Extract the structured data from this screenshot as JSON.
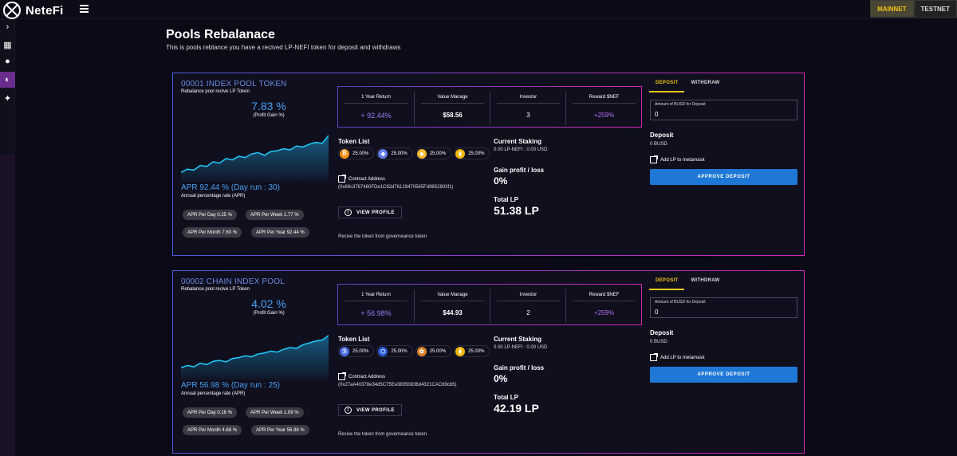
{
  "app": {
    "name": "NeteFi"
  },
  "network": {
    "mainnet": "MAINNET",
    "testnet": "TESTNET"
  },
  "page": {
    "title": "Pools Rebalanace",
    "subtitle": "This is pools reblance you have a recived LP-NEFI token for deposit and withdraws"
  },
  "sidebar_icons": [
    "chevron-right-icon",
    "grid-icon",
    "circle-icon",
    "pool-icon",
    "rocket-icon"
  ],
  "pools": [
    {
      "name": "00001 INDEX POOL TOKEN",
      "desc": "Rebalance pool recive LP Token",
      "profit": "7.83 %",
      "profit_label": "(Profit Gain %)",
      "apr": "APR 92.44 % (Day run : 30)",
      "apr_label": "Annual percentage rate (APR)",
      "apr_day": "APR Per Day 0.25 %",
      "apr_week": "APR Per Week 1.77 %",
      "apr_month": "APR Per Month 7.60 %",
      "apr_year": "APR Per Year 92.44 %",
      "stats": {
        "return_label": "1 Year Return",
        "return_value": "+ 92.44%",
        "manage_label": "Value Manage",
        "manage_value": "$58.56",
        "investor_label": "Investor",
        "investor_value": "3",
        "reward_label": "Reward $NEF",
        "reward_value": "+259%"
      },
      "token_list_title": "Token List",
      "tokens": [
        {
          "pct": "25.00%",
          "color": "#f7931a",
          "glyph": "₿",
          "icon": "bitcoin-icon"
        },
        {
          "pct": "25.00%",
          "color": "#627eea",
          "glyph": "◆",
          "icon": "ethereum-icon"
        },
        {
          "pct": "25.00%",
          "color": "#f3ba2f",
          "glyph": "◈",
          "icon": "bnb-icon"
        },
        {
          "pct": "25.00%",
          "color": "#f0b90b",
          "glyph": "⧫",
          "icon": "busd-icon"
        }
      ],
      "contract_label": "Contract Address",
      "contract": "(0x69c3767460FDe1C92d76129470565Fd9852803f1)",
      "view_profile": "VIEW PROFILE",
      "gov": "Recive the token from governeance token",
      "staking_title": "Current Staking",
      "staking_value": "0.00 LP-NEFI : 0.00 USD",
      "gain_title": "Gain profit / loss",
      "gain_value": "0%",
      "lp_title": "Total LP",
      "lp_value": "51.38 LP",
      "tab_deposit": "DEPOSIT",
      "tab_withdraw": "WITHDRAW",
      "amount_label": "Amount of BUSD for Deposit",
      "amount_value": "0",
      "deposit_title": "Deposit",
      "deposit_value": "0 BUSD",
      "add_lp": "Add LP to metamask",
      "approve": "APPROVE DEPOSIT",
      "chart": [
        0.15,
        0.22,
        0.2,
        0.3,
        0.28,
        0.38,
        0.35,
        0.45,
        0.42,
        0.5,
        0.47,
        0.55,
        0.58,
        0.52,
        0.6,
        0.62,
        0.66,
        0.64,
        0.72,
        0.7,
        0.76,
        0.8,
        0.78,
        0.95
      ]
    },
    {
      "name": "00002 CHAIN INDEX POOL",
      "desc": "Rebalance pool recive LP Token",
      "profit": "4.02 %",
      "profit_label": "(Profit Gain %)",
      "apr": "APR 56.98 % (Day run : 25)",
      "apr_label": "Annual percentage rate (APR)",
      "apr_day": "APR Per Day 0.16 %",
      "apr_week": "APR Per Week 1.09 %",
      "apr_month": "APR Per Month 4.68 %",
      "apr_year": "APR Per Year 56.98 %",
      "stats": {
        "return_label": "1 Year Return",
        "return_value": "+ 56.98%",
        "manage_label": "Value Manage",
        "manage_value": "$44.93",
        "investor_label": "Investor",
        "investor_value": "2",
        "reward_label": "Reward $NEF",
        "reward_value": "+259%"
      },
      "token_list_title": "Token List",
      "tokens": [
        {
          "pct": "25.00%",
          "color": "#4a6ae0",
          "glyph": "ℬ",
          "icon": "chain-token-icon"
        },
        {
          "pct": "25.00%",
          "color": "#2a5ada",
          "glyph": "⬡",
          "icon": "chainlink-icon"
        },
        {
          "pct": "25.00%",
          "color": "#d9822b",
          "glyph": "✿",
          "icon": "cake-icon"
        },
        {
          "pct": "25.00%",
          "color": "#f0b90b",
          "glyph": "⧫",
          "icon": "busd-icon"
        }
      ],
      "contract_label": "Contract Address",
      "contract": "(0x27aA40378e34d5C75Ee38050836d4321CAC69cb5)",
      "view_profile": "VIEW PROFILE",
      "gov": "Recive the token from governeance token",
      "staking_title": "Current Staking",
      "staking_value": "0.00 LP-NEFI : 0.00 USD",
      "gain_title": "Gain profit / loss",
      "gain_value": "0%",
      "lp_title": "Total LP",
      "lp_value": "42.19 LP",
      "tab_deposit": "DEPOSIT",
      "tab_withdraw": "WITHDRAW",
      "amount_label": "Amount of BUSD for Deposit",
      "amount_value": "0",
      "deposit_title": "Deposit",
      "deposit_value": "0 BUSD",
      "add_lp": "Add LP to metamask",
      "approve": "APPROVE DEPOSIT",
      "chart": [
        0.2,
        0.25,
        0.22,
        0.3,
        0.27,
        0.34,
        0.36,
        0.33,
        0.4,
        0.42,
        0.46,
        0.44,
        0.5,
        0.52,
        0.56,
        0.54,
        0.6,
        0.64,
        0.62,
        0.7,
        0.74,
        0.78,
        0.8,
        0.9
      ]
    }
  ]
}
